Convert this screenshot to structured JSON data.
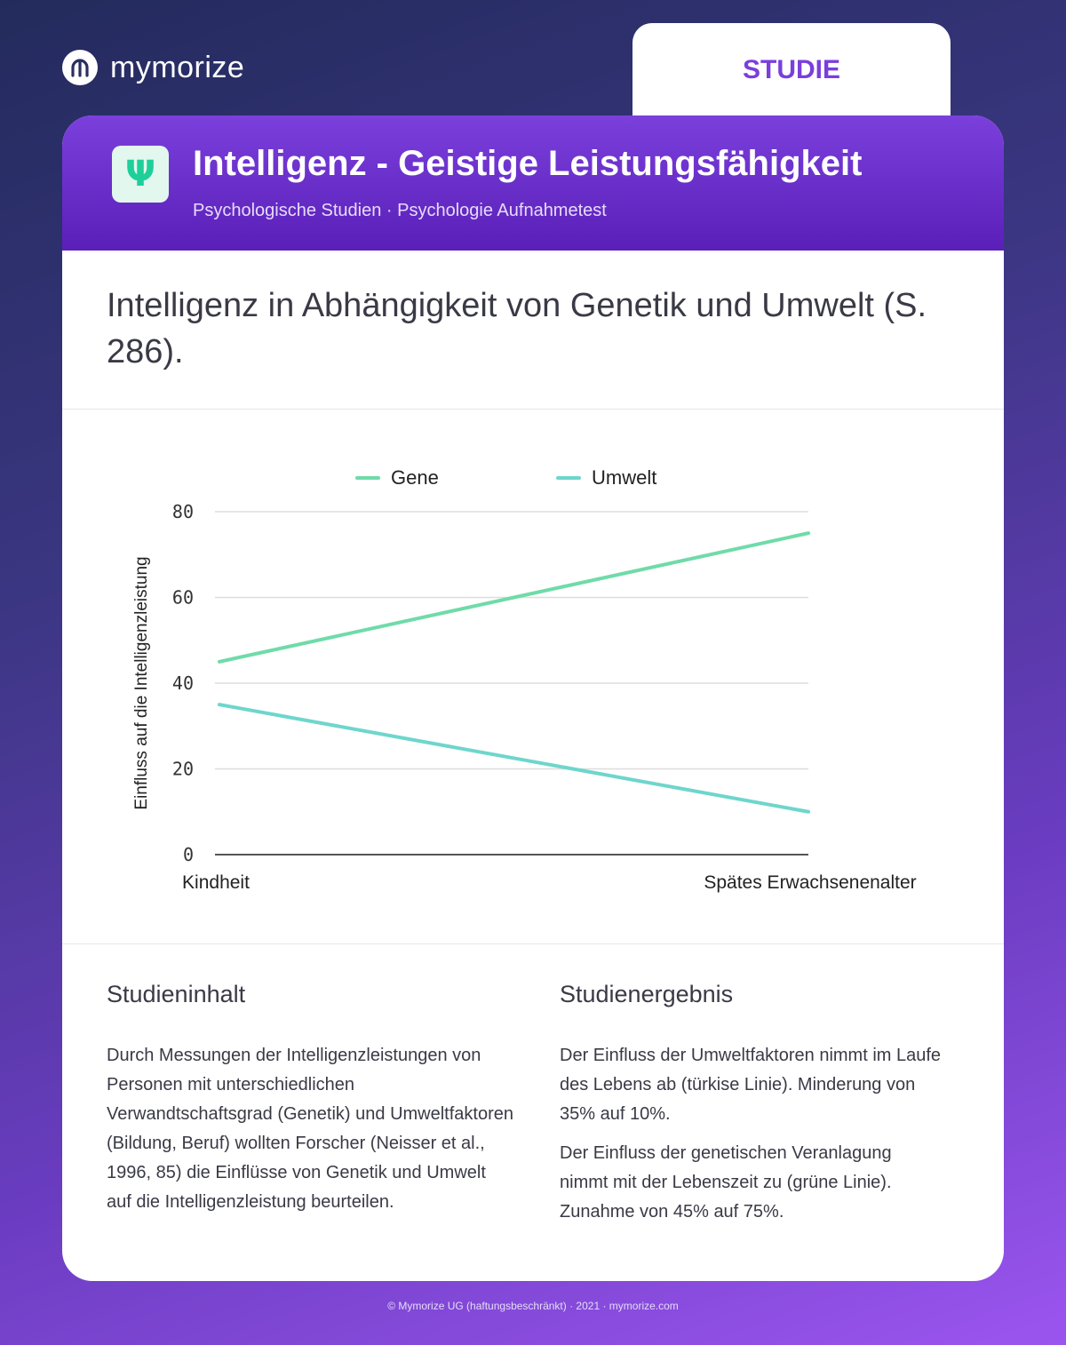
{
  "brand": {
    "name": "mymorize",
    "logo_icon": "mymorize-logo-icon"
  },
  "tab": {
    "label": "STUDIE"
  },
  "header": {
    "icon_glyph": "Ψ",
    "icon_name": "psi-icon",
    "title": "Intelligenz - Geistige Leistungsfähigkeit",
    "subtitle": "Psychologische Studien · Psychologie Aufnahmetest"
  },
  "question": "Intelligenz in Abhängigkeit von Genetik und Umwelt (S. 286).",
  "colors": {
    "accent": "#7b40dc",
    "gene": "#6fdba9",
    "umwelt": "#6ed6cc",
    "text": "#3a3a46"
  },
  "chart_data": {
    "type": "line",
    "x": [
      "Kindheit",
      "Spätes Erwachsenenalter"
    ],
    "series": [
      {
        "name": "Gene",
        "values": [
          45,
          75
        ],
        "color": "#6fdba9"
      },
      {
        "name": "Umwelt",
        "values": [
          35,
          10
        ],
        "color": "#6ed6cc"
      }
    ],
    "ylabel": "Einfluss auf die Intelligenzleistung",
    "xlabel": "",
    "ylim": [
      0,
      80
    ],
    "yticks": [
      0,
      20,
      40,
      60,
      80
    ],
    "grid": true,
    "legend": "top-center"
  },
  "content": {
    "left_heading": "Studieninhalt",
    "left_text": "Durch Messungen der Intelligenzleistungen von Personen mit unterschiedlichen Verwandtschaftsgrad (Genetik) und Umweltfaktoren (Bildung, Beruf) wollten Forscher (Neisser et al., 1996, 85) die Einflüsse von Genetik und Umwelt auf die Intelligenzleistung beurteilen.",
    "right_heading": "Studienergebnis",
    "right_text_1": "Der Einfluss der Umweltfaktoren nimmt im Laufe des Lebens ab (türkise Linie). Minderung von 35% auf 10%.",
    "right_text_2": "Der Einfluss der genetischen Veranlagung nimmt mit der Lebenszeit zu (grüne Linie). Zunahme von 45% auf 75%."
  },
  "footer": "© Mymorize UG (haftungsbeschränkt) · 2021 · mymorize.com"
}
